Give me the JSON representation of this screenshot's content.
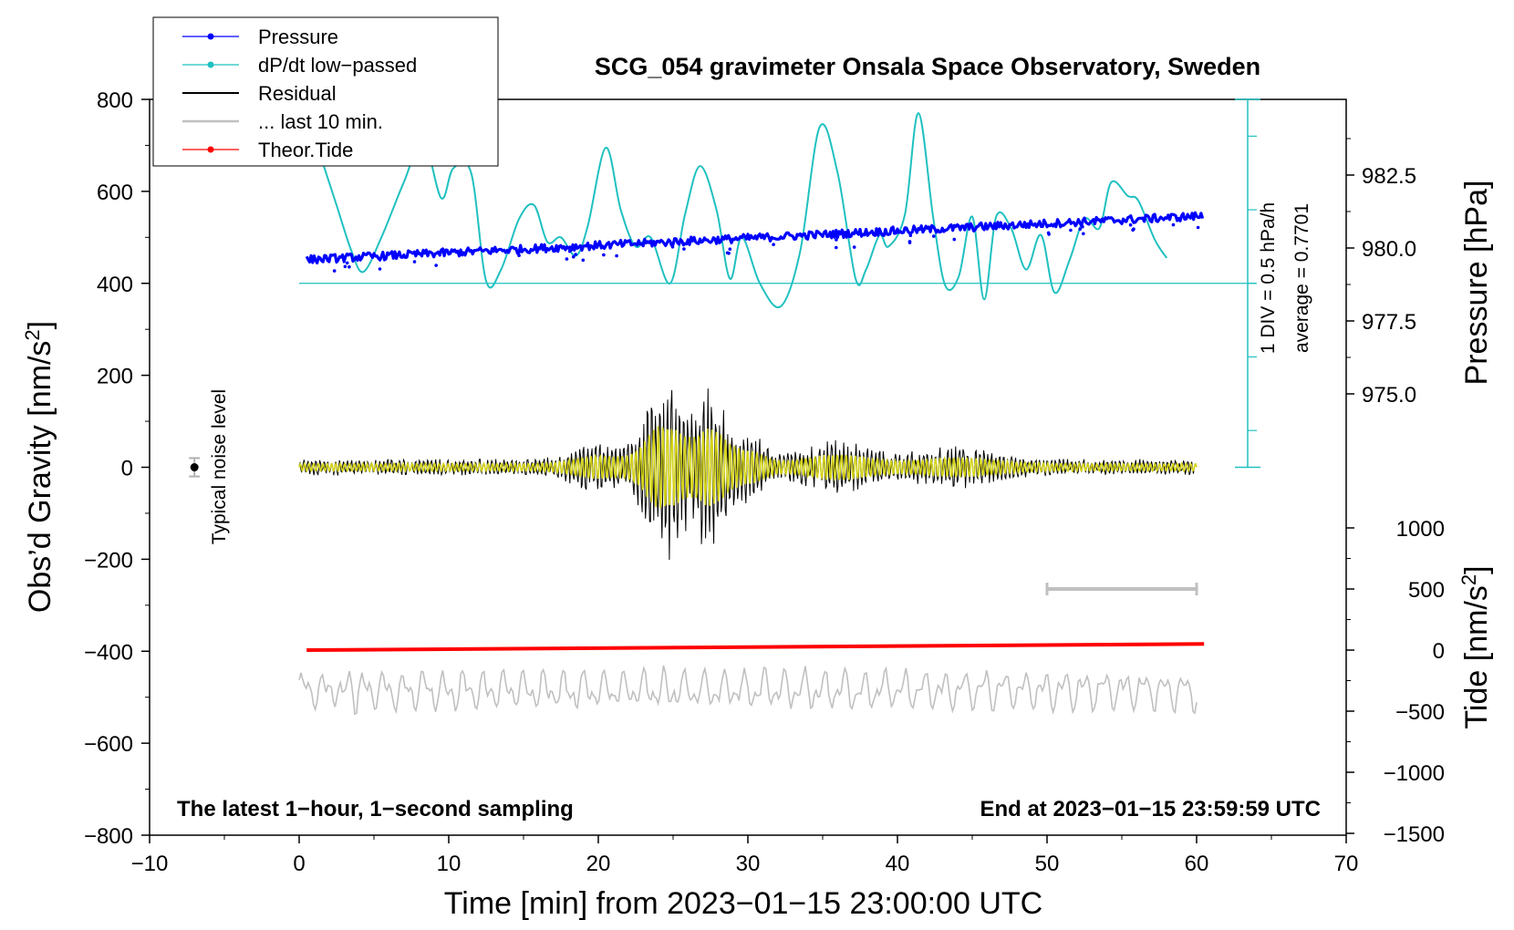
{
  "chart_data": {
    "type": "line",
    "title": "SCG_054 gravimeter Onsala Space Observatory, Sweden",
    "xlabel": "Time [min] from 2023−01−15 23:00:00 UTC",
    "ylabel_main": "Obs’d Gravity [nm/s",
    "ylabel_main_sup": "2",
    "ylabel_main_end": "]",
    "ylabel_pressure": "Pressure [hPa]",
    "ylabel_tide": "Tide [nm/s",
    "ylabel_tide_sup": "2",
    "ylabel_tide_end": "]",
    "xlim": [
      -10,
      70
    ],
    "ylim": [
      -800,
      800
    ],
    "x_ticks": [
      "−10",
      "0",
      "10",
      "20",
      "30",
      "40",
      "50",
      "60",
      "70"
    ],
    "y_ticks": [
      "800",
      "600",
      "400",
      "200",
      "0",
      "−200",
      "−400",
      "−600",
      "−800"
    ],
    "pressure_ticks": [
      "982.5",
      "980.0",
      "977.5",
      "975.0"
    ],
    "pressure_values": [
      982.5,
      980.0,
      977.5,
      975.0
    ],
    "tide_ticks": [
      "1000",
      "500",
      "0",
      "−500",
      "−1000",
      "−1500"
    ],
    "tide_values": [
      1000,
      500,
      0,
      -500,
      -1000,
      -1500
    ],
    "legend": [
      {
        "label": "Pressure",
        "color": "#0000ff",
        "marker": true
      },
      {
        "label": "dP/dt low−passed",
        "color": "#20c0c0",
        "marker": true
      },
      {
        "label": "Residual",
        "color": "#000000",
        "marker": false
      },
      {
        "label": "... last 10 min.",
        "color": "#c0c0c0",
        "marker": false
      },
      {
        "label": "Theor.Tide",
        "color": "#ff0000",
        "marker": true
      }
    ],
    "annotations": {
      "left_bottom": "The latest 1−hour, 1−second sampling",
      "right_bottom": "End at 2023−01−15 23:59:59 UTC",
      "noise_label": "Typical noise level",
      "div_label": "1 DIV = 0.5 hPa/h",
      "average_label": "average = 0.7701"
    },
    "series": {
      "pressure": {
        "name": "Pressure",
        "x_start": 0.5,
        "x_end": 60.5,
        "y_start": 979.6,
        "y_end": 981.1,
        "color": "#0000ff"
      },
      "dpdt": {
        "name": "dP/dt low−passed",
        "color": "#20c0c0",
        "baseline_gravity": 400,
        "x": [
          1.5,
          2.5,
          3.5,
          4.3,
          5.5,
          7.0,
          8.3,
          9.5,
          10.3,
          11.5,
          12.5,
          13.5,
          14.7,
          15.7,
          16.6,
          17.5,
          18.5,
          19.3,
          20.5,
          21.5,
          22.5,
          23.5,
          24.8,
          25.8,
          26.8,
          27.9,
          28.8,
          29.6,
          30.8,
          32.2,
          33.5,
          34.8,
          36.0,
          37.2,
          37.9,
          38.8,
          39.4,
          40.5,
          41.4,
          42.4,
          43.2,
          44.1,
          45.0,
          45.8,
          46.6,
          47.6,
          48.6,
          49.6,
          50.5,
          51.5,
          52.5,
          53.5,
          54.3,
          55.4,
          56.1,
          57.2,
          58.0
        ],
        "y": [
          670,
          570,
          470,
          425,
          500,
          620,
          710,
          585,
          650,
          640,
          405,
          430,
          540,
          570,
          490,
          500,
          460,
          525,
          695,
          560,
          480,
          500,
          400,
          550,
          655,
          560,
          410,
          500,
          400,
          350,
          470,
          740,
          640,
          410,
          430,
          505,
          480,
          550,
          770,
          540,
          395,
          415,
          545,
          365,
          545,
          520,
          430,
          505,
          380,
          450,
          540,
          520,
          620,
          590,
          580,
          495,
          455
        ]
      },
      "tide": {
        "name": "Theor.Tide",
        "color": "#ff0000",
        "x_start": 0.5,
        "x_end": 60.5,
        "tide_start": 0,
        "tide_end": 50
      }
    },
    "noise_bar": {
      "x": -7,
      "y": 0,
      "err": 20
    },
    "range_bar": {
      "x_start": 50,
      "x_end": 60,
      "tide_value": 500
    }
  }
}
